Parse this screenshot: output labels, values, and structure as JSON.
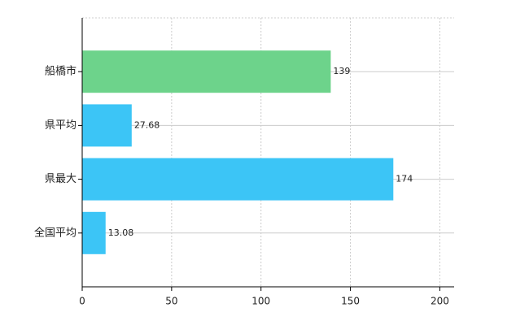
{
  "chart_data": {
    "type": "hbar",
    "categories": [
      "船橋市",
      "県平均",
      "県最大",
      "全国平均"
    ],
    "values": [
      139,
      27.68,
      174,
      13.08
    ],
    "colors": [
      "#6dd38b",
      "#3cc5f6",
      "#3cc5f6",
      "#3cc5f6"
    ],
    "xlim": [
      0,
      208
    ],
    "xticks": [
      0,
      50,
      100,
      150,
      200
    ],
    "grid": true
  }
}
